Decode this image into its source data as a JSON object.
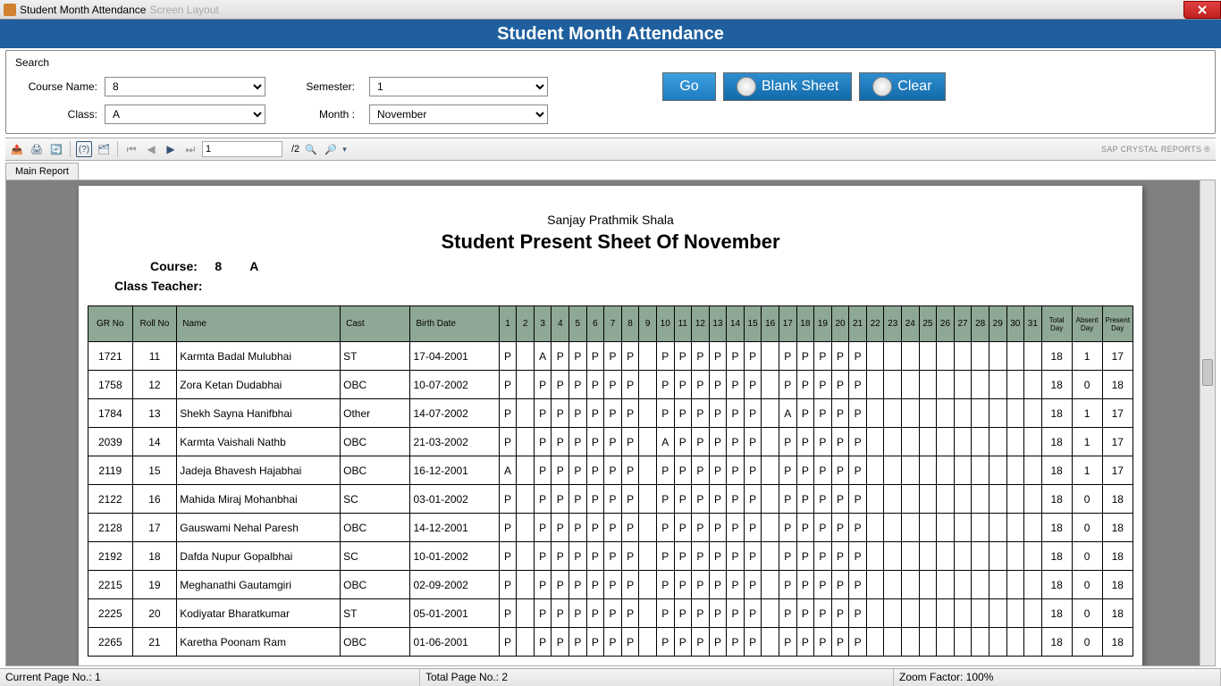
{
  "titlebar": {
    "title": "Student Month Attendance",
    "disabled": "Screen Layout"
  },
  "banner": "Student Month Attendance",
  "search": {
    "header": "Search",
    "course_label": "Course Name:",
    "course_value": "8",
    "semester_label": "Semester:",
    "semester_value": "1",
    "class_label": "Class:",
    "class_value": "A",
    "month_label": "Month :",
    "month_value": "November",
    "go_label": "Go",
    "blank_label": "Blank Sheet",
    "clear_label": "Clear"
  },
  "toolbar": {
    "page_current": "1",
    "page_total": "/2",
    "brand": "SAP CRYSTAL REPORTS ®"
  },
  "tab": {
    "main": "Main Report"
  },
  "report": {
    "school": "Sanjay Prathmik Shala",
    "title_a": "Student Present Sheet Of",
    "title_b": "November",
    "course_label": "Course:",
    "course_val": "8",
    "class_val": "A",
    "teacher_label": "Class Teacher:",
    "headers": {
      "gr": "GR No",
      "roll": "Roll No",
      "name": "Name",
      "cast": "Cast",
      "bd": "Birth Date",
      "total": "Total Day",
      "absent": "Absent Day",
      "present": "Present Day"
    },
    "day_cols": [
      "1",
      "2",
      "3",
      "4",
      "5",
      "6",
      "7",
      "8",
      "9",
      "10",
      "11",
      "12",
      "13",
      "14",
      "15",
      "16",
      "17",
      "18",
      "19",
      "20",
      "21",
      "22",
      "23",
      "24",
      "25",
      "26",
      "27",
      "28",
      "29",
      "30",
      "31"
    ],
    "rows": [
      {
        "gr": "1721",
        "roll": "11",
        "name": "Karmta Badal Mulubhai",
        "cast": "ST",
        "bd": "17-04-2001",
        "d": [
          "P",
          "",
          "A",
          "P",
          "P",
          "P",
          "P",
          "P",
          "",
          "P",
          "P",
          "P",
          "P",
          "P",
          "P",
          "",
          "P",
          "P",
          "P",
          "P",
          "P",
          "",
          "",
          "",
          "",
          "",
          "",
          "",
          "",
          "",
          ""
        ],
        "t": "18",
        "a": "1",
        "p": "17"
      },
      {
        "gr": "1758",
        "roll": "12",
        "name": "Zora Ketan Dudabhai",
        "cast": "OBC",
        "bd": "10-07-2002",
        "d": [
          "P",
          "",
          "P",
          "P",
          "P",
          "P",
          "P",
          "P",
          "",
          "P",
          "P",
          "P",
          "P",
          "P",
          "P",
          "",
          "P",
          "P",
          "P",
          "P",
          "P",
          "",
          "",
          "",
          "",
          "",
          "",
          "",
          "",
          "",
          ""
        ],
        "t": "18",
        "a": "0",
        "p": "18"
      },
      {
        "gr": "1784",
        "roll": "13",
        "name": "Shekh Sayna Hanifbhai",
        "cast": "Other",
        "bd": "14-07-2002",
        "d": [
          "P",
          "",
          "P",
          "P",
          "P",
          "P",
          "P",
          "P",
          "",
          "P",
          "P",
          "P",
          "P",
          "P",
          "P",
          "",
          "A",
          "P",
          "P",
          "P",
          "P",
          "",
          "",
          "",
          "",
          "",
          "",
          "",
          "",
          "",
          ""
        ],
        "t": "18",
        "a": "1",
        "p": "17"
      },
      {
        "gr": "2039",
        "roll": "14",
        "name": "Karmta Vaishali Nathb",
        "cast": "OBC",
        "bd": "21-03-2002",
        "d": [
          "P",
          "",
          "P",
          "P",
          "P",
          "P",
          "P",
          "P",
          "",
          "A",
          "P",
          "P",
          "P",
          "P",
          "P",
          "",
          "P",
          "P",
          "P",
          "P",
          "P",
          "",
          "",
          "",
          "",
          "",
          "",
          "",
          "",
          "",
          ""
        ],
        "t": "18",
        "a": "1",
        "p": "17"
      },
      {
        "gr": "2119",
        "roll": "15",
        "name": "Jadeja Bhavesh Hajabhai",
        "cast": "OBC",
        "bd": "16-12-2001",
        "d": [
          "A",
          "",
          "P",
          "P",
          "P",
          "P",
          "P",
          "P",
          "",
          "P",
          "P",
          "P",
          "P",
          "P",
          "P",
          "",
          "P",
          "P",
          "P",
          "P",
          "P",
          "",
          "",
          "",
          "",
          "",
          "",
          "",
          "",
          "",
          ""
        ],
        "t": "18",
        "a": "1",
        "p": "17"
      },
      {
        "gr": "2122",
        "roll": "16",
        "name": "Mahida Miraj Mohanbhai",
        "cast": "SC",
        "bd": "03-01-2002",
        "d": [
          "P",
          "",
          "P",
          "P",
          "P",
          "P",
          "P",
          "P",
          "",
          "P",
          "P",
          "P",
          "P",
          "P",
          "P",
          "",
          "P",
          "P",
          "P",
          "P",
          "P",
          "",
          "",
          "",
          "",
          "",
          "",
          "",
          "",
          "",
          ""
        ],
        "t": "18",
        "a": "0",
        "p": "18"
      },
      {
        "gr": "2128",
        "roll": "17",
        "name": "Gauswami Nehal Paresh",
        "cast": "OBC",
        "bd": "14-12-2001",
        "d": [
          "P",
          "",
          "P",
          "P",
          "P",
          "P",
          "P",
          "P",
          "",
          "P",
          "P",
          "P",
          "P",
          "P",
          "P",
          "",
          "P",
          "P",
          "P",
          "P",
          "P",
          "",
          "",
          "",
          "",
          "",
          "",
          "",
          "",
          "",
          ""
        ],
        "t": "18",
        "a": "0",
        "p": "18"
      },
      {
        "gr": "2192",
        "roll": "18",
        "name": "Dafda Nupur Gopalbhai",
        "cast": "SC",
        "bd": "10-01-2002",
        "d": [
          "P",
          "",
          "P",
          "P",
          "P",
          "P",
          "P",
          "P",
          "",
          "P",
          "P",
          "P",
          "P",
          "P",
          "P",
          "",
          "P",
          "P",
          "P",
          "P",
          "P",
          "",
          "",
          "",
          "",
          "",
          "",
          "",
          "",
          "",
          ""
        ],
        "t": "18",
        "a": "0",
        "p": "18"
      },
      {
        "gr": "2215",
        "roll": "19",
        "name": "Meghanathi Gautamgiri",
        "cast": "OBC",
        "bd": "02-09-2002",
        "d": [
          "P",
          "",
          "P",
          "P",
          "P",
          "P",
          "P",
          "P",
          "",
          "P",
          "P",
          "P",
          "P",
          "P",
          "P",
          "",
          "P",
          "P",
          "P",
          "P",
          "P",
          "",
          "",
          "",
          "",
          "",
          "",
          "",
          "",
          "",
          ""
        ],
        "t": "18",
        "a": "0",
        "p": "18"
      },
      {
        "gr": "2225",
        "roll": "20",
        "name": "Kodiyatar Bharatkumar",
        "cast": "ST",
        "bd": "05-01-2001",
        "d": [
          "P",
          "",
          "P",
          "P",
          "P",
          "P",
          "P",
          "P",
          "",
          "P",
          "P",
          "P",
          "P",
          "P",
          "P",
          "",
          "P",
          "P",
          "P",
          "P",
          "P",
          "",
          "",
          "",
          "",
          "",
          "",
          "",
          "",
          "",
          ""
        ],
        "t": "18",
        "a": "0",
        "p": "18"
      },
      {
        "gr": "2265",
        "roll": "21",
        "name": "Karetha  Poonam  Ram",
        "cast": "OBC",
        "bd": "01-06-2001",
        "d": [
          "P",
          "",
          "P",
          "P",
          "P",
          "P",
          "P",
          "P",
          "",
          "P",
          "P",
          "P",
          "P",
          "P",
          "P",
          "",
          "P",
          "P",
          "P",
          "P",
          "P",
          "",
          "",
          "",
          "",
          "",
          "",
          "",
          "",
          "",
          ""
        ],
        "t": "18",
        "a": "0",
        "p": "18"
      }
    ]
  },
  "status": {
    "current": "Current Page No.: 1",
    "total": "Total Page No.: 2",
    "zoom": "Zoom Factor: 100%"
  }
}
